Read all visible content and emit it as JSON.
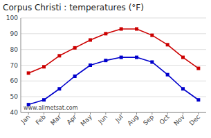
{
  "chart_data": {
    "type": "line",
    "title": "Corpus Christi : temperatures (°F)",
    "categories": [
      "Jan",
      "Feb",
      "Mar",
      "Apr",
      "May",
      "Jun",
      "Jul",
      "Aug",
      "Sep",
      "Oct",
      "Nov",
      "Dec"
    ],
    "series": [
      {
        "color": "#cc0000",
        "marker": "square",
        "values": [
          65,
          69,
          76,
          81,
          86,
          90,
          93,
          93,
          89,
          83,
          75,
          68
        ]
      },
      {
        "color": "#0000cc",
        "marker": "square",
        "values": [
          45,
          48,
          55,
          63,
          70,
          73,
          75,
          75,
          72,
          64,
          55,
          48
        ]
      }
    ],
    "ylim": [
      40,
      100
    ],
    "yticks": [
      40,
      50,
      60,
      70,
      80,
      90,
      100
    ],
    "grid": true,
    "annotations": [
      "www.allmetsat.com"
    ]
  }
}
